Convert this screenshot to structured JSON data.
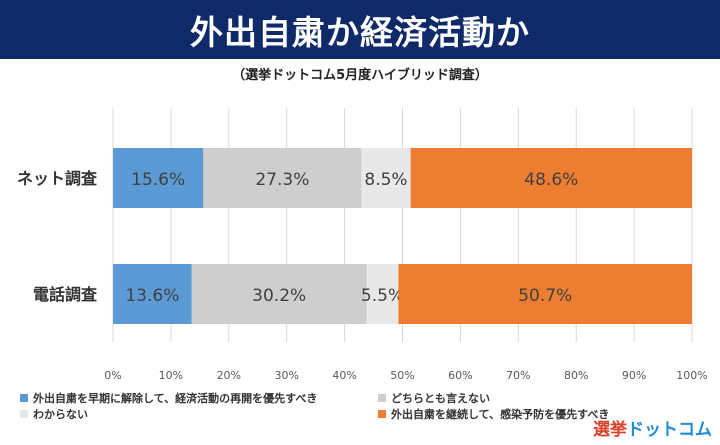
{
  "header": {
    "title": "外出自粛か経済活動か"
  },
  "chart_data": {
    "type": "bar",
    "orientation": "horizontal",
    "stacked": true,
    "title": "外出自粛か経済活動か",
    "subtitle": "（選挙ドットコム5月度ハイブリッド調査）",
    "categories": [
      "ネット調査",
      "電話調査"
    ],
    "series": [
      {
        "name": "外出自粛を早期に解除して、経済活動の再開を優先すべき",
        "color": "#5b9bd5",
        "values": [
          15.6,
          13.6
        ],
        "labels": [
          "15.6%",
          "13.6%"
        ]
      },
      {
        "name": "どちらとも言えない",
        "color": "#cfcece",
        "values": [
          27.3,
          30.2
        ],
        "labels": [
          "27.3%",
          "30.2%"
        ]
      },
      {
        "name": "わからない",
        "color": "#e9e8e8",
        "values": [
          8.5,
          5.5
        ],
        "labels": [
          "8.5%",
          "5.5%"
        ]
      },
      {
        "name": "外出自粛を継続して、感染予防を優先すべき",
        "color": "#ed7d31",
        "values": [
          48.6,
          50.7
        ],
        "labels": [
          "48.6%",
          "50.7%"
        ]
      }
    ],
    "xlim": [
      0,
      100
    ],
    "xticks": [
      "0%",
      "10%",
      "20%",
      "30%",
      "40%",
      "50%",
      "60%",
      "70%",
      "80%",
      "90%",
      "100%"
    ],
    "grid": true,
    "legend": "bottom"
  },
  "logo": {
    "main": "選挙",
    "accent": "ドットコム"
  }
}
